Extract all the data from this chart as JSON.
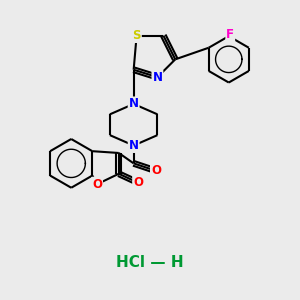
{
  "background_color": "#ebebeb",
  "atom_colors": {
    "S": "#cccc00",
    "N": "#0000ff",
    "O": "#ff0000",
    "F": "#ff00cc",
    "C": "#000000",
    "Cl": "#009933"
  },
  "bond_color": "#000000",
  "bond_width": 1.5,
  "hcl_color": "#009933",
  "hcl_text": "HCl — H"
}
